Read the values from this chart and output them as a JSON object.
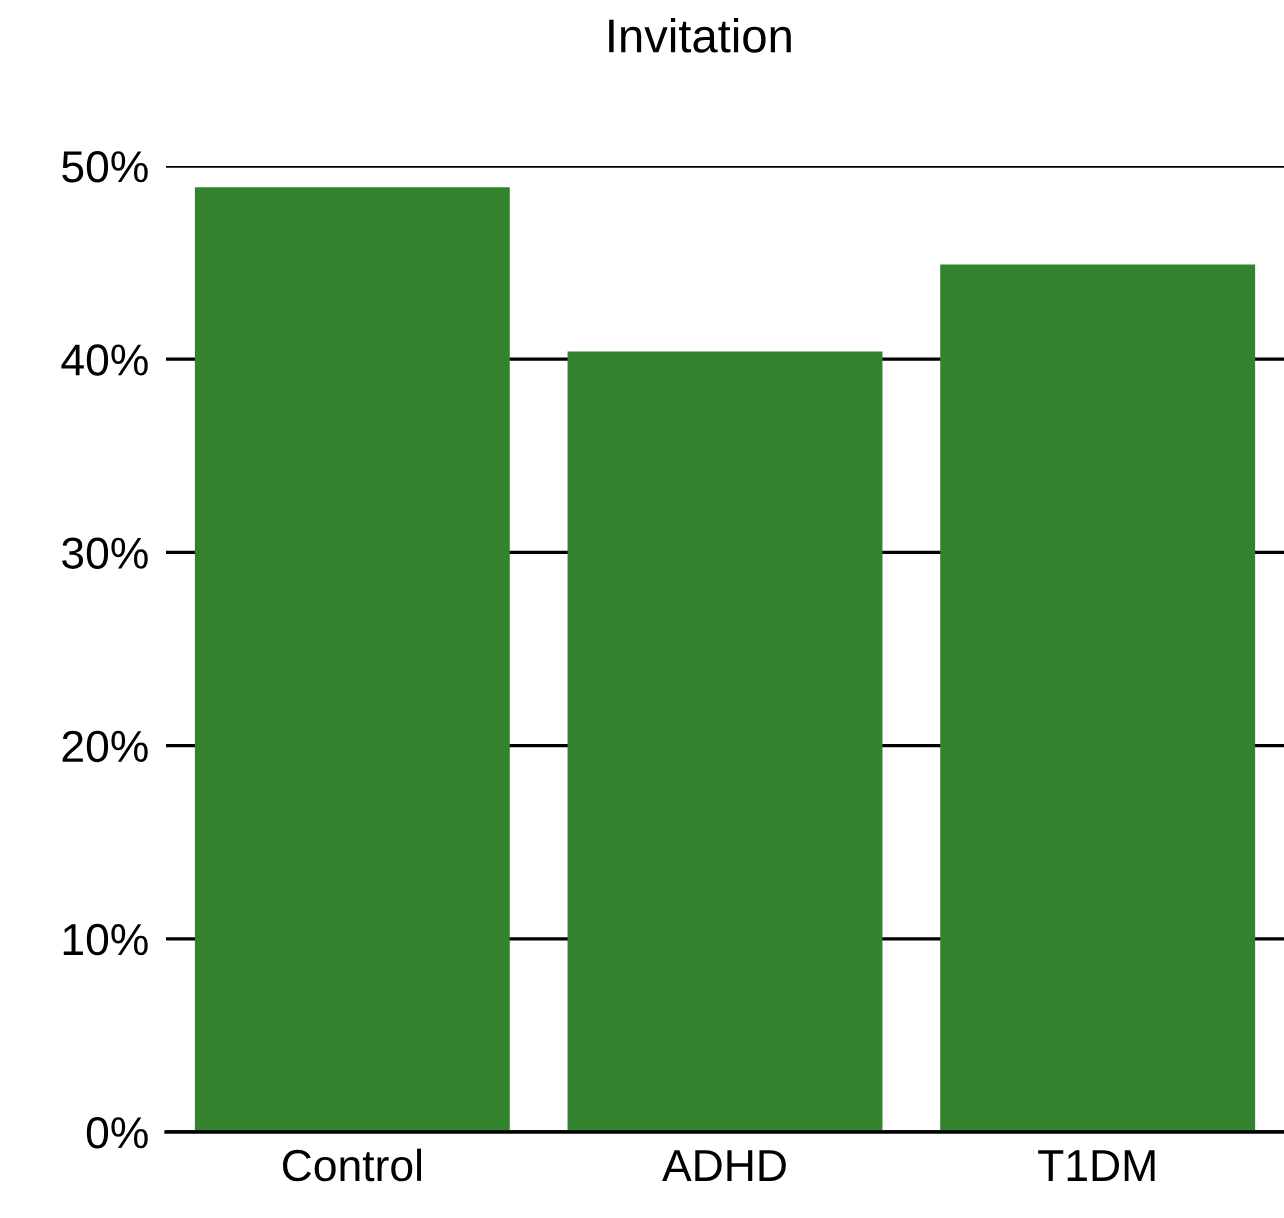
{
  "chart_data": {
    "type": "bar",
    "title": "Invitation",
    "categories": [
      "Control",
      "ADHD",
      "T1DM"
    ],
    "values": [
      48.9,
      40.4,
      44.9
    ],
    "color": "#33822d",
    "ylim": [
      0,
      50
    ],
    "yticks": [
      {
        "value": 0,
        "label": "0%"
      },
      {
        "value": 10,
        "label": "10%"
      },
      {
        "value": 20,
        "label": "20%"
      },
      {
        "value": 30,
        "label": "30%"
      },
      {
        "value": 40,
        "label": "40%"
      },
      {
        "value": 50,
        "label": "50%"
      }
    ],
    "grid": "y"
  }
}
